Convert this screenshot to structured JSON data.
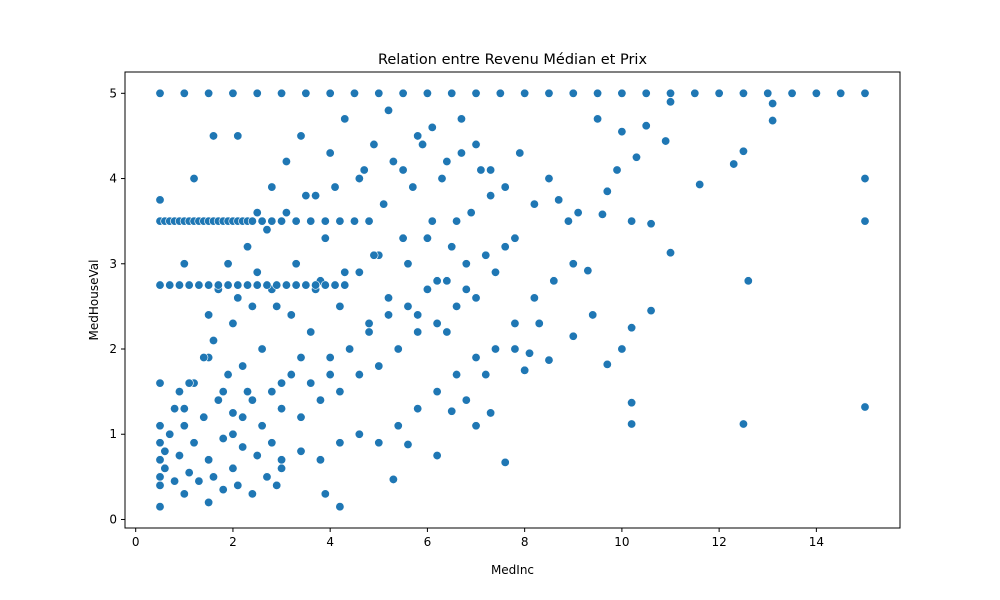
{
  "chart_data": {
    "type": "scatter",
    "title": "Relation entre Revenu Médian et Prix",
    "xlabel": "MedInc",
    "ylabel": "MedHouseVal",
    "xlim": [
      -0.22,
      15.72
    ],
    "ylim": [
      -0.1,
      5.25
    ],
    "xticks": [
      0,
      2,
      4,
      6,
      8,
      10,
      12,
      14
    ],
    "yticks": [
      0,
      1,
      2,
      3,
      4,
      5
    ],
    "grid": false,
    "legend": "none",
    "point_color": "#1f77b4",
    "point_edge_color": "#ffffff",
    "x": [
      0.5,
      0.5,
      0.5,
      0.5,
      0.5,
      0.5,
      0.5,
      0.6,
      0.6,
      0.7,
      0.8,
      0.8,
      0.9,
      0.9,
      1.0,
      1.0,
      1.1,
      1.2,
      1.2,
      1.3,
      1.4,
      1.5,
      1.5,
      1.6,
      1.7,
      1.8,
      1.8,
      1.9,
      2.0,
      2.0,
      2.1,
      2.2,
      2.3,
      2.4,
      2.5,
      2.6,
      2.7,
      2.8,
      2.9,
      3.0,
      1.0,
      1.2,
      1.4,
      1.6,
      1.8,
      2.0,
      2.2,
      2.4,
      2.6,
      2.8,
      3.0,
      3.2,
      3.4,
      3.6,
      3.8,
      4.0,
      4.2,
      4.4,
      4.6,
      4.8,
      5.0,
      5.2,
      5.4,
      5.6,
      5.8,
      6.0,
      6.2,
      6.4,
      6.6,
      6.8,
      1.5,
      1.7,
      1.9,
      2.1,
      2.3,
      2.5,
      2.7,
      2.9,
      3.1,
      3.3,
      3.5,
      3.7,
      3.9,
      4.1,
      4.3,
      4.5,
      4.7,
      4.9,
      5.1,
      5.3,
      5.5,
      5.7,
      5.9,
      6.1,
      6.3,
      6.5,
      6.7,
      6.9,
      7.1,
      7.3,
      2.0,
      2.2,
      2.4,
      2.6,
      2.8,
      3.0,
      3.2,
      3.4,
      3.6,
      3.8,
      4.0,
      4.2,
      4.4,
      4.6,
      4.8,
      5.0,
      5.2,
      5.4,
      5.6,
      5.8,
      6.0,
      6.2,
      6.4,
      6.6,
      6.8,
      7.0,
      7.2,
      7.4,
      7.6,
      7.8,
      2.5,
      2.8,
      3.1,
      3.4,
      3.7,
      4.0,
      4.3,
      4.6,
      4.9,
      5.2,
      5.5,
      5.8,
      6.1,
      6.4,
      6.7,
      7.0,
      7.3,
      7.6,
      7.9,
      8.2,
      8.5,
      3.0,
      3.4,
      3.8,
      4.2,
      4.6,
      5.0,
      5.4,
      5.8,
      6.2,
      6.6,
      7.0,
      7.4,
      7.8,
      8.2,
      8.6,
      9.0,
      0.5,
      1.0,
      1.5,
      2.0,
      2.5,
      3.0,
      3.5,
      4.0,
      4.5,
      5.0,
      5.5,
      6.0,
      6.5,
      7.0,
      7.5,
      8.0,
      8.5,
      9.0,
      9.5,
      10.0,
      10.5,
      11.0,
      11.5,
      12.0,
      12.5,
      13.0,
      13.5,
      14.0,
      14.5,
      15.0,
      0.5,
      0.6,
      0.7,
      0.8,
      0.9,
      1.0,
      1.1,
      1.2,
      1.3,
      1.4,
      1.5,
      1.6,
      1.7,
      1.8,
      1.9,
      2.0,
      2.1,
      2.2,
      2.3,
      2.4,
      2.6,
      2.8,
      3.0,
      3.3,
      3.6,
      3.9,
      4.2,
      4.5,
      4.8,
      0.5,
      0.7,
      0.9,
      1.1,
      1.3,
      1.5,
      1.7,
      1.9,
      2.1,
      2.3,
      2.5,
      2.7,
      2.9,
      3.1,
      3.3,
      3.5,
      3.7,
      3.9,
      4.1,
      4.3,
      0.5,
      1.6,
      2.1,
      0.5,
      0.7,
      0.9,
      1.0,
      1.1,
      1.2,
      1.5,
      9.0,
      9.4,
      9.7,
      10.0,
      10.2,
      10.6,
      11.0,
      11.6,
      12.3,
      12.5,
      13.1,
      15.0,
      15.0,
      15.0,
      10.2,
      10.2,
      12.5,
      9.3,
      9.6,
      10.2,
      10.6,
      9.9,
      9.1,
      8.7,
      8.3,
      7.6,
      7.3,
      8.1,
      8.0,
      7.8,
      6.2,
      6.8,
      7.2,
      5.3,
      5.6,
      4.2,
      3.9,
      6.5,
      7.0,
      8.5,
      10.0,
      9.5,
      10.3,
      10.5,
      10.9,
      12.6,
      13.1,
      11.0,
      9.7,
      8.9
    ],
    "y": [
      0.5,
      0.7,
      0.9,
      1.1,
      1.6,
      0.15,
      0.4,
      0.6,
      0.8,
      1.0,
      0.45,
      1.3,
      0.75,
      1.5,
      0.3,
      1.1,
      0.55,
      0.9,
      1.6,
      0.45,
      1.2,
      0.7,
      1.9,
      0.5,
      1.4,
      0.35,
      0.95,
      1.7,
      0.6,
      1.25,
      0.4,
      0.85,
      1.5,
      0.3,
      0.75,
      1.1,
      0.5,
      0.9,
      0.4,
      0.7,
      1.3,
      1.6,
      1.9,
      2.1,
      1.5,
      2.3,
      1.8,
      2.5,
      2.0,
      2.7,
      1.6,
      2.4,
      1.9,
      2.2,
      2.8,
      1.7,
      2.5,
      2.0,
      2.9,
      2.3,
      3.1,
      2.6,
      2.0,
      3.0,
      2.4,
      3.3,
      2.8,
      2.2,
      3.5,
      2.7,
      2.4,
      2.7,
      3.0,
      2.6,
      3.2,
      2.9,
      3.4,
      2.5,
      3.6,
      3.0,
      3.8,
      2.7,
      3.3,
      3.9,
      2.9,
      3.5,
      4.1,
      3.1,
      3.7,
      4.2,
      3.3,
      3.9,
      4.4,
      3.5,
      4.0,
      3.2,
      4.3,
      3.6,
      4.1,
      3.8,
      1.0,
      1.2,
      1.4,
      1.1,
      1.5,
      1.3,
      1.7,
      1.2,
      1.6,
      1.4,
      1.9,
      1.5,
      2.0,
      1.7,
      2.2,
      1.8,
      2.4,
      2.0,
      2.5,
      2.2,
      2.7,
      2.3,
      2.8,
      2.5,
      3.0,
      2.6,
      3.1,
      2.9,
      3.2,
      3.3,
      3.6,
      3.9,
      4.2,
      4.5,
      3.8,
      4.3,
      4.7,
      4.0,
      4.4,
      4.8,
      4.1,
      4.5,
      4.6,
      4.2,
      4.7,
      4.4,
      4.1,
      3.9,
      4.3,
      3.7,
      4.0,
      0.6,
      0.8,
      0.7,
      0.9,
      1.0,
      0.9,
      1.1,
      1.3,
      1.5,
      1.7,
      1.9,
      2.0,
      2.3,
      2.6,
      2.8,
      3.0,
      5.0,
      5.0,
      5.0,
      5.0,
      5.0,
      5.0,
      5.0,
      5.0,
      5.0,
      5.0,
      5.0,
      5.0,
      5.0,
      5.0,
      5.0,
      5.0,
      5.0,
      5.0,
      5.0,
      5.0,
      5.0,
      5.0,
      5.0,
      5.0,
      5.0,
      5.0,
      5.0,
      5.0,
      5.0,
      5.0,
      3.5,
      3.5,
      3.5,
      3.5,
      3.5,
      3.5,
      3.5,
      3.5,
      3.5,
      3.5,
      3.5,
      3.5,
      3.5,
      3.5,
      3.5,
      3.5,
      3.5,
      3.5,
      3.5,
      3.5,
      3.5,
      3.5,
      3.5,
      3.5,
      3.5,
      3.5,
      3.5,
      3.5,
      3.5,
      2.75,
      2.75,
      2.75,
      2.75,
      2.75,
      2.75,
      2.75,
      2.75,
      2.75,
      2.75,
      2.75,
      2.75,
      2.75,
      2.75,
      2.75,
      2.75,
      2.75,
      2.75,
      2.75,
      2.75,
      3.75,
      4.5,
      4.5,
      2.75,
      2.75,
      2.75,
      3.0,
      1.6,
      4.0,
      0.2,
      2.15,
      2.4,
      1.82,
      2.0,
      2.25,
      2.45,
      3.13,
      3.93,
      4.17,
      4.32,
      4.68,
      4.0,
      3.5,
      1.32,
      1.37,
      1.12,
      1.12,
      2.92,
      3.58,
      3.5,
      3.47,
      4.1,
      3.6,
      3.75,
      2.3,
      0.67,
      1.25,
      1.95,
      1.75,
      2.0,
      0.75,
      1.4,
      1.7,
      0.47,
      0.88,
      0.15,
      0.3,
      1.27,
      1.1,
      1.87,
      4.55,
      4.7,
      4.25,
      4.62,
      4.44,
      2.8,
      4.88,
      4.9,
      3.85,
      3.5
    ]
  }
}
